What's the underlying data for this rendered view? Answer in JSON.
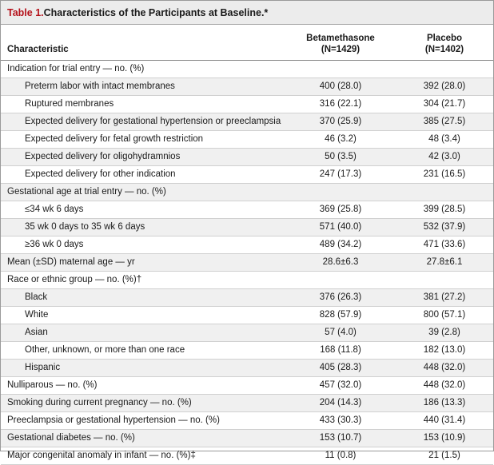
{
  "table": {
    "title_number": "Table 1.",
    "title_text": " Characteristics of the Participants at Baseline.*",
    "header": {
      "characteristic": "Characteristic",
      "col1_name": "Betamethasone",
      "col1_n": "(N=1429)",
      "col2_name": "Placebo",
      "col2_n": "(N=1402)"
    },
    "rows": [
      {
        "label": "Indication for trial entry — no. (%)",
        "indent": 0,
        "betamethasone": "",
        "placebo": ""
      },
      {
        "label": "Preterm labor with intact membranes",
        "indent": 1,
        "betamethasone": "400 (28.0)",
        "placebo": "392 (28.0)"
      },
      {
        "label": "Ruptured membranes",
        "indent": 1,
        "betamethasone": "316 (22.1)",
        "placebo": "304 (21.7)"
      },
      {
        "label": "Expected delivery for gestational hypertension or preeclampsia",
        "indent": 1,
        "betamethasone": "370 (25.9)",
        "placebo": "385 (27.5)"
      },
      {
        "label": "Expected delivery for fetal growth restriction",
        "indent": 1,
        "betamethasone": "46 (3.2)",
        "placebo": "48 (3.4)"
      },
      {
        "label": "Expected delivery for oligohydramnios",
        "indent": 1,
        "betamethasone": "50 (3.5)",
        "placebo": "42 (3.0)"
      },
      {
        "label": "Expected delivery for other indication",
        "indent": 1,
        "betamethasone": "247 (17.3)",
        "placebo": "231 (16.5)"
      },
      {
        "label": "Gestational age at trial entry — no. (%)",
        "indent": 0,
        "betamethasone": "",
        "placebo": ""
      },
      {
        "label": "≤34 wk 6 days",
        "indent": 1,
        "betamethasone": "369 (25.8)",
        "placebo": "399 (28.5)"
      },
      {
        "label": "35 wk 0 days to 35 wk 6 days",
        "indent": 1,
        "betamethasone": "571 (40.0)",
        "placebo": "532 (37.9)"
      },
      {
        "label": "≥36 wk 0 days",
        "indent": 1,
        "betamethasone": "489 (34.2)",
        "placebo": "471 (33.6)"
      },
      {
        "label": "Mean (±SD) maternal age — yr",
        "indent": 0,
        "betamethasone": "28.6±6.3",
        "placebo": "27.8±6.1"
      },
      {
        "label": "Race or ethnic group — no. (%)†",
        "indent": 0,
        "betamethasone": "",
        "placebo": ""
      },
      {
        "label": "Black",
        "indent": 1,
        "betamethasone": "376 (26.3)",
        "placebo": "381 (27.2)"
      },
      {
        "label": "White",
        "indent": 1,
        "betamethasone": "828 (57.9)",
        "placebo": "800 (57.1)"
      },
      {
        "label": "Asian",
        "indent": 1,
        "betamethasone": "57 (4.0)",
        "placebo": "39 (2.8)"
      },
      {
        "label": "Other, unknown, or more than one race",
        "indent": 1,
        "betamethasone": "168 (11.8)",
        "placebo": "182 (13.0)"
      },
      {
        "label": "Hispanic",
        "indent": 1,
        "betamethasone": "405 (28.3)",
        "placebo": "448 (32.0)"
      },
      {
        "label": "Nulliparous — no. (%)",
        "indent": 0,
        "betamethasone": "457 (32.0)",
        "placebo": "448 (32.0)"
      },
      {
        "label": "Smoking during current pregnancy — no. (%)",
        "indent": 0,
        "betamethasone": "204 (14.3)",
        "placebo": "186 (13.3)"
      },
      {
        "label": "Preeclampsia or gestational hypertension — no. (%)",
        "indent": 0,
        "betamethasone": "433 (30.3)",
        "placebo": "440 (31.4)"
      },
      {
        "label": "Gestational diabetes — no. (%)",
        "indent": 0,
        "betamethasone": "153 (10.7)",
        "placebo": "153 (10.9)"
      },
      {
        "label": "Major congenital anomaly in infant — no. (%)‡",
        "indent": 0,
        "betamethasone": "11 (0.8)",
        "placebo": "21 (1.5)"
      }
    ]
  }
}
